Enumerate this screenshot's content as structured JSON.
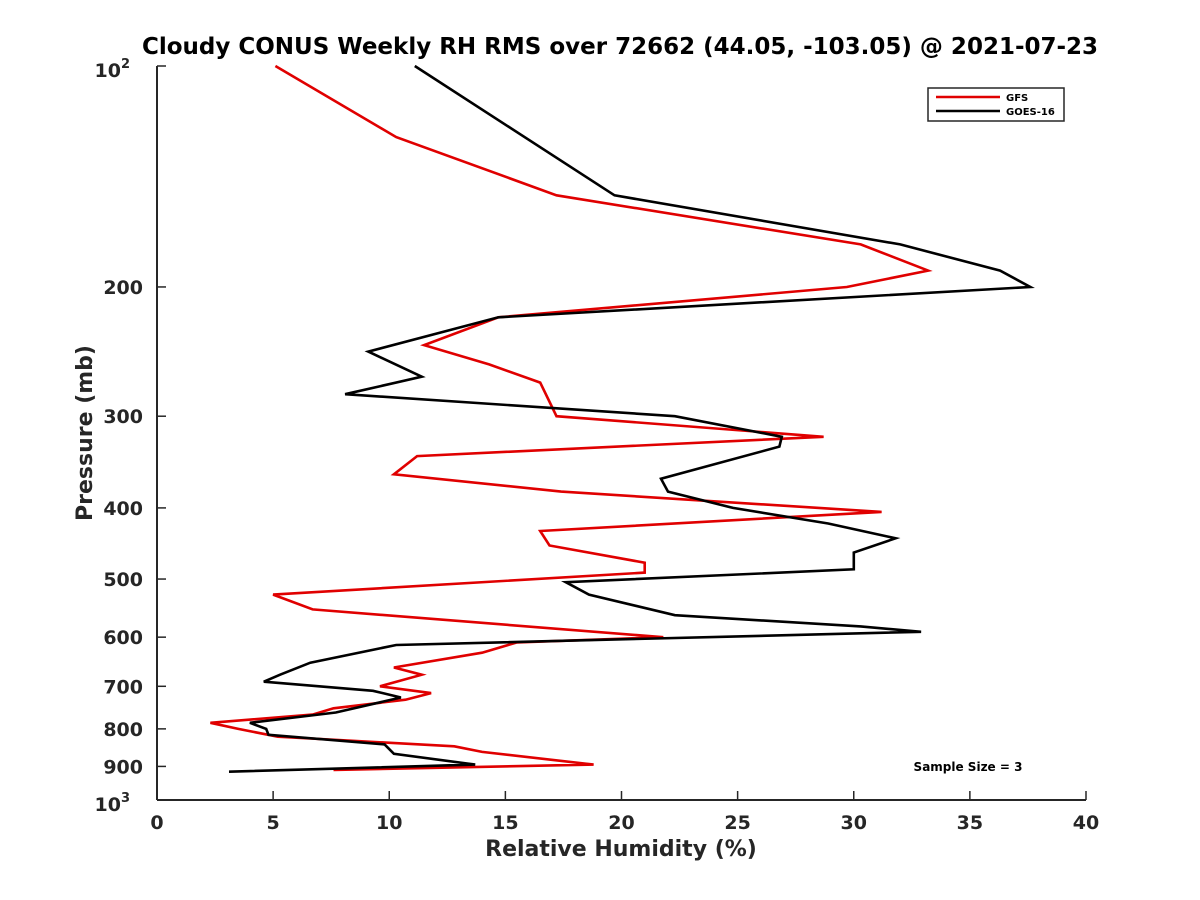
{
  "chart_data": {
    "type": "line",
    "title": "Cloudy CONUS Weekly RH RMS over 72662 (44.05, -103.05) @ 2021-07-23",
    "xlabel": "Relative Humidity (%)",
    "ylabel": "Pressure (mb)",
    "xlim": [
      0,
      40
    ],
    "ylim": [
      100,
      1000
    ],
    "y_scale": "log",
    "y_reversed": true,
    "x_ticks": [
      "0",
      "5",
      "10",
      "15",
      "20",
      "25",
      "30",
      "35",
      "40"
    ],
    "y_tick_labels": [
      "200",
      "300",
      "400",
      "500",
      "600",
      "700",
      "800",
      "900"
    ],
    "y_tick_values": [
      200,
      300,
      400,
      500,
      600,
      700,
      800,
      900
    ],
    "y_exp_labels": {
      "top": {
        "value": 100,
        "base": "10",
        "exp": "2"
      },
      "bottom": {
        "value": 1000,
        "base": "10",
        "exp": "3"
      }
    },
    "grid": false,
    "legend_position": "top-right",
    "annotation": "Sample Size = 3",
    "series": [
      {
        "name": "GFS",
        "color": "#e00000",
        "points": [
          [
            5.1,
            100
          ],
          [
            10.3,
            125
          ],
          [
            17.2,
            150
          ],
          [
            30.3,
            175
          ],
          [
            33.2,
            190
          ],
          [
            29.7,
            200
          ],
          [
            14.7,
            220
          ],
          [
            11.5,
            240
          ],
          [
            14.3,
            255
          ],
          [
            16.5,
            270
          ],
          [
            17.2,
            300
          ],
          [
            28.7,
            320
          ],
          [
            11.2,
            340
          ],
          [
            10.2,
            360
          ],
          [
            17.4,
            380
          ],
          [
            31.2,
            405
          ],
          [
            16.5,
            430
          ],
          [
            16.9,
            450
          ],
          [
            21.0,
            475
          ],
          [
            21.0,
            490
          ],
          [
            5.0,
            525
          ],
          [
            6.7,
            550
          ],
          [
            21.8,
            600
          ],
          [
            15.5,
            610
          ],
          [
            14.0,
            630
          ],
          [
            10.2,
            660
          ],
          [
            11.4,
            675
          ],
          [
            9.6,
            700
          ],
          [
            11.8,
            715
          ],
          [
            10.7,
            730
          ],
          [
            7.6,
            750
          ],
          [
            6.7,
            765
          ],
          [
            2.3,
            785
          ],
          [
            3.5,
            800
          ],
          [
            5.2,
            820
          ],
          [
            12.8,
            845
          ],
          [
            14.0,
            860
          ],
          [
            18.8,
            895
          ],
          [
            7.6,
            910
          ]
        ]
      },
      {
        "name": "GOES-16",
        "color": "#000000",
        "points": [
          [
            11.1,
            100
          ],
          [
            19.7,
            150
          ],
          [
            32.0,
            175
          ],
          [
            36.3,
            190
          ],
          [
            37.6,
            200
          ],
          [
            14.7,
            220
          ],
          [
            9.1,
            245
          ],
          [
            11.4,
            265
          ],
          [
            8.1,
            280
          ],
          [
            22.3,
            300
          ],
          [
            26.9,
            320
          ],
          [
            26.8,
            330
          ],
          [
            21.7,
            365
          ],
          [
            22.0,
            380
          ],
          [
            24.8,
            400
          ],
          [
            28.9,
            420
          ],
          [
            31.8,
            440
          ],
          [
            30.0,
            460
          ],
          [
            30.0,
            485
          ],
          [
            17.6,
            505
          ],
          [
            18.6,
            525
          ],
          [
            22.3,
            560
          ],
          [
            30.3,
            580
          ],
          [
            32.9,
            590
          ],
          [
            10.3,
            615
          ],
          [
            6.6,
            650
          ],
          [
            5.3,
            675
          ],
          [
            4.6,
            690
          ],
          [
            9.3,
            710
          ],
          [
            10.5,
            725
          ],
          [
            7.7,
            760
          ],
          [
            4.0,
            785
          ],
          [
            4.7,
            800
          ],
          [
            4.8,
            815
          ],
          [
            9.8,
            840
          ],
          [
            10.2,
            865
          ],
          [
            13.7,
            895
          ],
          [
            3.1,
            915
          ]
        ]
      }
    ]
  }
}
